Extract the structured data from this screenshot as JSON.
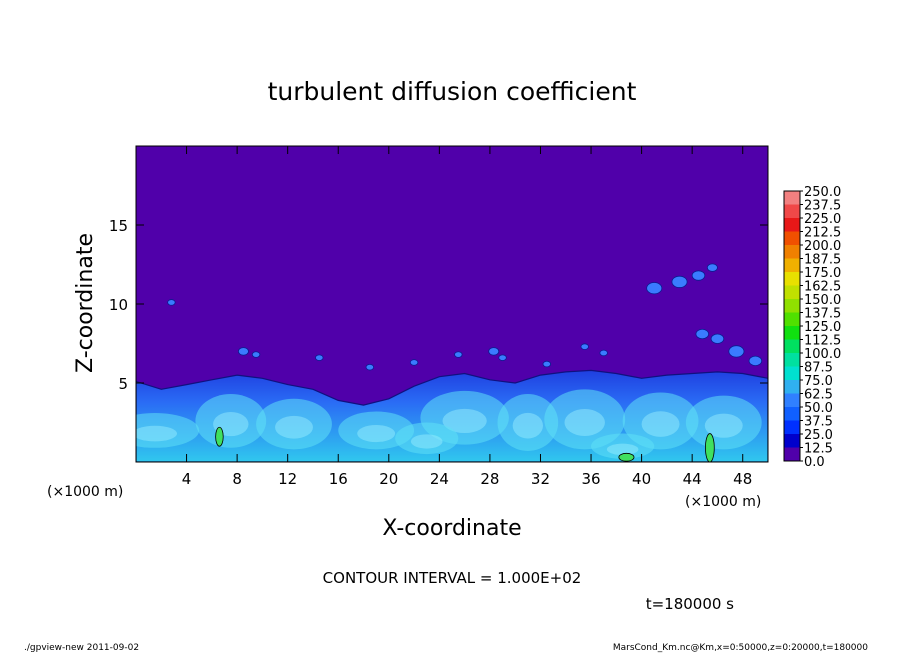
{
  "chart_data": {
    "type": "heatmap",
    "title": "turbulent diffusion coefficient",
    "xlabel": "X-coordinate",
    "ylabel": "Z-coordinate",
    "x_scale_note": "(×1000 m)",
    "xlim": [
      0,
      50
    ],
    "ylim": [
      0,
      20
    ],
    "x_ticks": [
      4,
      8,
      12,
      16,
      20,
      24,
      28,
      32,
      36,
      40,
      44,
      48
    ],
    "y_ticks": [
      5,
      10,
      15
    ],
    "x_tick_labels": [
      "4",
      "8",
      "12",
      "16",
      "20",
      "24",
      "28",
      "32",
      "36",
      "40",
      "44",
      "48"
    ],
    "y_tick_labels": [
      "5",
      "10",
      "15"
    ],
    "background_value": 0.0,
    "colorbar": {
      "levels": [
        "250.0",
        "237.5",
        "225.0",
        "212.5",
        "200.0",
        "187.5",
        "175.0",
        "162.5",
        "150.0",
        "137.5",
        "125.0",
        "112.5",
        "100.0",
        "87.5",
        "75.0",
        "62.5",
        "50.0",
        "37.5",
        "25.0",
        "12.5",
        "0.0"
      ],
      "colors": [
        "#f28080",
        "#f04848",
        "#e81818",
        "#f05000",
        "#f08000",
        "#f0b000",
        "#e8e000",
        "#c0e000",
        "#90e000",
        "#50e000",
        "#10e010",
        "#00e060",
        "#00e0a0",
        "#00e0d0",
        "#30b0f0",
        "#3080ff",
        "#1060ff",
        "#0030ff",
        "#0000cc",
        "#5000aa"
      ]
    },
    "contour_interval": "CONTOUR INTERVAL = 1.000E+02",
    "time": "t=180000 s",
    "band_profile": {
      "x": [
        0,
        2,
        4,
        6,
        8,
        10,
        12,
        14,
        16,
        18,
        20,
        22,
        24,
        26,
        28,
        30,
        32,
        34,
        36,
        38,
        40,
        42,
        44,
        46,
        48,
        50
      ],
      "top": [
        5.1,
        4.6,
        4.9,
        5.2,
        5.5,
        5.3,
        4.9,
        4.6,
        3.9,
        3.6,
        4.0,
        4.8,
        5.4,
        5.6,
        5.2,
        5.0,
        5.5,
        5.7,
        5.8,
        5.6,
        5.3,
        5.5,
        5.6,
        5.7,
        5.6,
        5.3
      ]
    }
  },
  "footer": {
    "left": "./gpview-new   2011-09-02",
    "right": "MarsCond_Km.nc@Km,x=0:50000,z=0:20000,t=180000"
  },
  "colors": {
    "background_field": "#5000aa",
    "band_blue": "#2a6cf5",
    "band_cyan": "#30c8ee"
  }
}
